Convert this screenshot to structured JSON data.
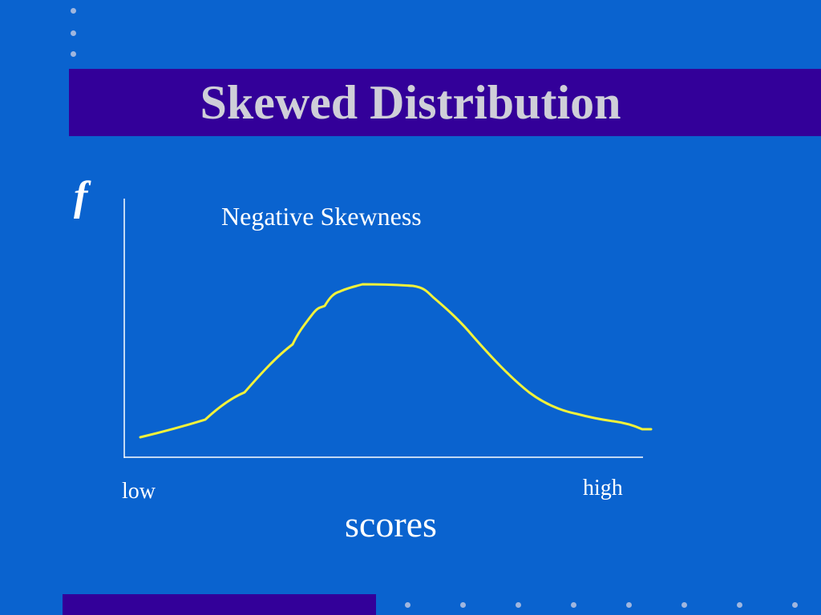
{
  "slide": {
    "title": "Skewed Distribution"
  },
  "diagram": {
    "y_axis_label": "f",
    "caption": "Negative Skewness",
    "x_low_label": "low",
    "x_high_label": "high",
    "x_axis_label": "scores",
    "curve_color": "#f2f23a",
    "axis_color": "#ffffff"
  },
  "colors": {
    "background": "#0a63cf",
    "title_band": "#330099",
    "title_text": "#cfcfd8",
    "decor_dots": "#9fb6df"
  }
}
